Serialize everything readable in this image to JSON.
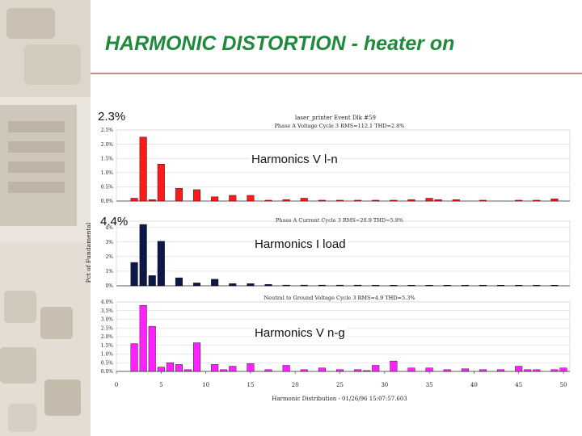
{
  "slide": {
    "title": "HARMONIC DISTORTION - heater on",
    "overlay_pct_1": "2.3%",
    "overlay_pct_2": "4.4%",
    "label_v_ln": "Harmonics V l-n",
    "label_i_load": "Harmonics I load",
    "label_v_ng": "Harmonics V n-g"
  },
  "colors": {
    "title": "#1e8a3a",
    "series_v_ln": "#ff1a1a",
    "series_i_load": "#0c1848",
    "series_v_ng": "#ff22ff",
    "deco": "#d8cfc2"
  },
  "chart_data": {
    "type": "bar",
    "title": "laser_printer Event Dlk #59",
    "ylabel": "Pct of Fundamental",
    "xlabel": "Harmonic Distribution - 01/26/96 15:07:57.603",
    "x_ticks": [
      0,
      5,
      10,
      15,
      20,
      25,
      30,
      35,
      40,
      45,
      50
    ],
    "panels": [
      {
        "subtitle": "Phase A Voltage Cycle 3 RMS=112.1 THD=2.8%",
        "ylim": [
          0,
          2.5
        ],
        "y_ticks": [
          "0.0%",
          "0.5%",
          "1.0%",
          "1.5%",
          "2.0%",
          "2.5%"
        ],
        "y_tick_values": [
          0,
          0.5,
          1.0,
          1.5,
          2.0,
          2.5
        ],
        "bars": [
          {
            "h": 2,
            "v": 0.1
          },
          {
            "h": 3,
            "v": 2.25
          },
          {
            "h": 4,
            "v": 0.05
          },
          {
            "h": 5,
            "v": 1.3
          },
          {
            "h": 7,
            "v": 0.45
          },
          {
            "h": 9,
            "v": 0.4
          },
          {
            "h": 11,
            "v": 0.15
          },
          {
            "h": 13,
            "v": 0.2
          },
          {
            "h": 15,
            "v": 0.2
          },
          {
            "h": 17,
            "v": 0.03
          },
          {
            "h": 19,
            "v": 0.05
          },
          {
            "h": 21,
            "v": 0.1
          },
          {
            "h": 23,
            "v": 0.03
          },
          {
            "h": 25,
            "v": 0.03
          },
          {
            "h": 27,
            "v": 0.03
          },
          {
            "h": 29,
            "v": 0.03
          },
          {
            "h": 31,
            "v": 0.03
          },
          {
            "h": 33,
            "v": 0.05
          },
          {
            "h": 35,
            "v": 0.1
          },
          {
            "h": 36,
            "v": 0.05
          },
          {
            "h": 38,
            "v": 0.05
          },
          {
            "h": 41,
            "v": 0.03
          },
          {
            "h": 45,
            "v": 0.03
          },
          {
            "h": 47,
            "v": 0.03
          },
          {
            "h": 49,
            "v": 0.08
          }
        ]
      },
      {
        "subtitle": "Phase A Current Cycle 3 RMS=20.9 THD=5.8%",
        "ylim": [
          0,
          4.2
        ],
        "y_ticks": [
          "0%",
          "1%",
          "2%",
          "3%",
          "4%"
        ],
        "y_tick_values": [
          0,
          1,
          2,
          3,
          4
        ],
        "bars": [
          {
            "h": 2,
            "v": 1.6
          },
          {
            "h": 3,
            "v": 4.2
          },
          {
            "h": 4,
            "v": 0.7
          },
          {
            "h": 5,
            "v": 3.05
          },
          {
            "h": 7,
            "v": 0.55
          },
          {
            "h": 9,
            "v": 0.2
          },
          {
            "h": 11,
            "v": 0.45
          },
          {
            "h": 13,
            "v": 0.15
          },
          {
            "h": 15,
            "v": 0.15
          },
          {
            "h": 17,
            "v": 0.1
          },
          {
            "h": 19,
            "v": 0.05
          },
          {
            "h": 21,
            "v": 0.05
          },
          {
            "h": 23,
            "v": 0.05
          },
          {
            "h": 25,
            "v": 0.05
          },
          {
            "h": 27,
            "v": 0.05
          },
          {
            "h": 29,
            "v": 0.03
          },
          {
            "h": 31,
            "v": 0.03
          },
          {
            "h": 33,
            "v": 0.03
          },
          {
            "h": 35,
            "v": 0.03
          },
          {
            "h": 37,
            "v": 0.03
          },
          {
            "h": 39,
            "v": 0.03
          },
          {
            "h": 41,
            "v": 0.03
          },
          {
            "h": 43,
            "v": 0.03
          },
          {
            "h": 45,
            "v": 0.03
          },
          {
            "h": 47,
            "v": 0.03
          },
          {
            "h": 49,
            "v": 0.03
          }
        ]
      },
      {
        "subtitle": "Neutral to Ground Voltage Cycle 3 RMS=4.9 THD=5.3%",
        "ylim": [
          0,
          4.0
        ],
        "y_ticks": [
          "0.0%",
          "0.5%",
          "1.0%",
          "1.5%",
          "2.0%",
          "2.5%",
          "3.0%",
          "3.5%",
          "4.0%"
        ],
        "y_tick_values": [
          0,
          0.5,
          1.0,
          1.5,
          2.0,
          2.5,
          3.0,
          3.5,
          4.0
        ],
        "bars": [
          {
            "h": 2,
            "v": 1.6
          },
          {
            "h": 3,
            "v": 3.8
          },
          {
            "h": 4,
            "v": 2.6
          },
          {
            "h": 5,
            "v": 0.25
          },
          {
            "h": 6,
            "v": 0.5
          },
          {
            "h": 7,
            "v": 0.4
          },
          {
            "h": 8,
            "v": 0.1
          },
          {
            "h": 9,
            "v": 1.65
          },
          {
            "h": 11,
            "v": 0.4
          },
          {
            "h": 12,
            "v": 0.1
          },
          {
            "h": 13,
            "v": 0.3
          },
          {
            "h": 15,
            "v": 0.45
          },
          {
            "h": 17,
            "v": 0.1
          },
          {
            "h": 19,
            "v": 0.35
          },
          {
            "h": 21,
            "v": 0.1
          },
          {
            "h": 23,
            "v": 0.2
          },
          {
            "h": 25,
            "v": 0.1
          },
          {
            "h": 27,
            "v": 0.1
          },
          {
            "h": 28,
            "v": 0.05
          },
          {
            "h": 29,
            "v": 0.35
          },
          {
            "h": 31,
            "v": 0.6
          },
          {
            "h": 33,
            "v": 0.2
          },
          {
            "h": 35,
            "v": 0.2
          },
          {
            "h": 37,
            "v": 0.1
          },
          {
            "h": 39,
            "v": 0.15
          },
          {
            "h": 41,
            "v": 0.1
          },
          {
            "h": 43,
            "v": 0.1
          },
          {
            "h": 45,
            "v": 0.3
          },
          {
            "h": 46,
            "v": 0.1
          },
          {
            "h": 47,
            "v": 0.1
          },
          {
            "h": 49,
            "v": 0.1
          },
          {
            "h": 50,
            "v": 0.2
          }
        ]
      }
    ]
  }
}
